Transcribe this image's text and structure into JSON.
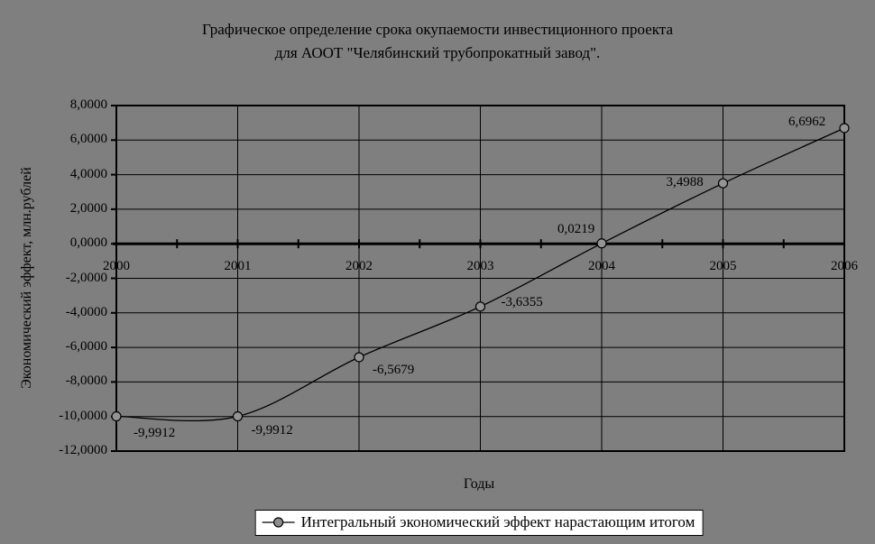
{
  "title": {
    "line1": "Графическое определение срока окупаемости инвестиционного проекта",
    "line2": "для АООТ \"Челябинский трубопрокатный завод\"."
  },
  "chart_data": {
    "type": "line",
    "smoothed": true,
    "marker": "circle",
    "x": [
      2000,
      2001,
      2002,
      2003,
      2004,
      2005,
      2006
    ],
    "xtick_labels": [
      "2000",
      "2001",
      "2002",
      "2003",
      "2004",
      "2005",
      "2006"
    ],
    "series": [
      {
        "name": "Интегральный экономический эффект нарастающим итогом",
        "values": [
          -9.9912,
          -9.9912,
          -6.5679,
          -3.6355,
          0.0219,
          3.4988,
          6.6962
        ]
      }
    ],
    "point_labels": [
      "-9,9912",
      "-9,9912",
      "-6,5679",
      "-3,6355",
      "0,0219",
      "3,4988",
      "6,6962"
    ],
    "xlabel": "Годы",
    "ylabel": "Экономический эффект, млн.рублей",
    "ylim": [
      -12,
      8
    ],
    "ytick_step": 2,
    "ytick_labels": [
      "8,0000",
      "6,0000",
      "4,0000",
      "2,0000",
      "0,0000",
      "-2,0000",
      "-4,0000",
      "-6,0000",
      "-8,0000",
      "-10,0000",
      "-12,0000"
    ],
    "grid": true,
    "legend_position": "bottom"
  },
  "legend": {
    "label": "Интегральный экономический эффект нарастающим итогом"
  },
  "colors": {
    "background": "#7f7f7f",
    "line": "#000000",
    "grid": "#000000",
    "marker_fill": "#949494",
    "legend_bg": "#ffffff",
    "text": "#000000"
  }
}
